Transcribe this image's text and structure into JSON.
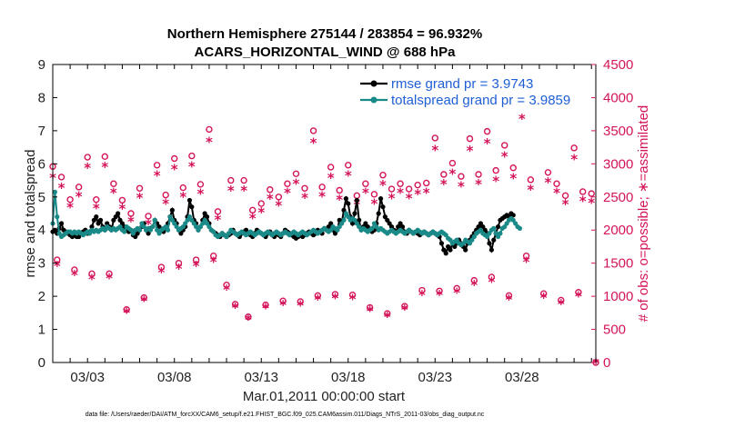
{
  "title_line1": "Northern Hemisphere 275144 / 283854 = 96.932%",
  "title_line2": "ACARS_HORIZONTAL_WIND @ 688 hPa",
  "footnote": "data file: /Users/raeder/DAI/ATM_forcXX/CAM6_setup/f.e21.FHIST_BGC.f09_025.CAM6assim.011/Diags_NTrS_2011-03/obs_diag_output.nc",
  "colors": {
    "rmse": "#000000",
    "spread": "#1a8a88",
    "obs": "#d4145a",
    "legend_text": "#1f5fd6"
  },
  "chart_data": {
    "type": "line",
    "xlabel": "Mar.01,2011 00:00:00 start",
    "ylabel": "rmse and totalspread",
    "y2label": "# of obs: o=possible; ∗=assimilated",
    "x_ticks": [
      "03/03",
      "03/08",
      "03/13",
      "03/18",
      "03/23",
      "03/28"
    ],
    "y_ticks": [
      "0",
      "1",
      "2",
      "3",
      "4",
      "5",
      "6",
      "7",
      "8",
      "9"
    ],
    "y2_ticks": [
      "0",
      "500",
      "1000",
      "1500",
      "2000",
      "2500",
      "3000",
      "3500",
      "4000",
      "4500"
    ],
    "xlim": [
      1.0,
      32.25
    ],
    "ylim": [
      0,
      9
    ],
    "y2lim": [
      0,
      4500
    ],
    "legend": [
      {
        "label": "rmse grand pr = 3.9743",
        "series": "rmse"
      },
      {
        "label": "totalspread grand pr = 3.9859",
        "series": "spread"
      }
    ],
    "legend_position": "top-right",
    "grid": false,
    "series": [
      {
        "name": "rmse",
        "axis": "left",
        "color": "#000000",
        "x_start": 1.0,
        "dx": 0.125,
        "values": [
          3.95,
          4.0,
          3.9,
          4.05,
          4.2,
          4.0,
          3.95,
          3.9,
          3.85,
          3.8,
          3.85,
          3.8,
          3.8,
          3.9,
          3.95,
          4.0,
          3.9,
          3.95,
          4.1,
          4.3,
          4.4,
          4.2,
          4.3,
          4.1,
          4.0,
          4.2,
          4.1,
          4.0,
          4.3,
          4.4,
          4.5,
          4.3,
          4.2,
          4.1,
          4.0,
          3.95,
          4.0,
          3.85,
          3.8,
          3.9,
          4.0,
          4.1,
          4.2,
          4.0,
          3.9,
          4.05,
          4.1,
          4.3,
          4.2,
          4.1,
          4.0,
          3.95,
          4.05,
          4.2,
          4.4,
          4.6,
          4.3,
          4.2,
          4.0,
          3.9,
          4.0,
          4.1,
          4.4,
          4.9,
          4.7,
          4.3,
          4.2,
          4.0,
          4.1,
          4.3,
          4.5,
          4.4,
          4.2,
          4.0,
          3.95,
          3.9,
          3.85,
          3.8,
          3.9,
          3.85,
          3.8,
          3.85,
          3.9,
          4.0,
          3.9,
          3.85,
          3.8,
          3.9,
          3.95,
          4.0,
          3.9,
          3.85,
          3.8,
          3.9,
          4.0,
          3.95,
          3.9,
          3.85,
          3.8,
          3.9,
          3.95,
          3.85,
          3.8,
          3.9,
          3.85,
          3.8,
          3.9,
          4.0,
          3.95,
          3.9,
          3.85,
          3.8,
          3.75,
          3.8,
          3.85,
          3.8,
          3.85,
          3.9,
          3.95,
          3.9,
          3.85,
          3.9,
          4.0,
          3.95,
          3.9,
          4.05,
          4.0,
          4.1,
          4.2,
          4.0,
          3.9,
          4.0,
          4.3,
          4.2,
          4.6,
          4.95,
          4.8,
          4.4,
          4.2,
          4.5,
          4.9,
          4.3,
          4.0,
          4.1,
          4.2,
          4.1,
          4.0,
          3.95,
          4.0,
          4.2,
          4.5,
          4.95,
          4.7,
          4.4,
          4.3,
          4.2,
          4.1,
          4.0,
          3.95,
          4.1,
          4.2,
          4.1,
          3.95,
          3.9,
          4.0,
          3.95,
          3.9,
          3.95,
          3.9,
          3.85,
          3.9,
          3.95,
          3.9,
          3.85,
          3.9,
          3.95,
          3.9,
          3.85,
          3.8,
          3.6,
          3.4,
          3.3,
          3.5,
          3.4,
          3.6,
          3.5,
          3.6,
          3.7,
          3.6,
          3.5,
          3.4,
          3.6,
          3.7,
          3.8,
          3.9,
          4.0,
          4.1,
          4.2,
          4.1,
          4.0,
          3.9,
          3.6,
          3.4,
          3.7,
          3.9,
          4.1,
          4.3,
          4.35,
          4.4,
          4.45,
          4.4,
          4.5,
          4.45
        ]
      },
      {
        "name": "totalspread",
        "axis": "left",
        "color": "#1a8a88",
        "x_start": 1.0,
        "dx": 0.125,
        "values": [
          4.2,
          5.15,
          4.4,
          3.9,
          3.8,
          3.85,
          3.9,
          3.95,
          3.95,
          3.9,
          3.95,
          3.9,
          3.95,
          3.9,
          3.85,
          3.9,
          3.95,
          3.9,
          4.0,
          3.95,
          4.0,
          3.95,
          4.0,
          4.05,
          4.0,
          4.1,
          4.05,
          4.0,
          4.05,
          4.0,
          4.05,
          4.1,
          4.0,
          3.95,
          4.1,
          4.05,
          4.0,
          3.9,
          4.0,
          4.05,
          4.0,
          4.2,
          4.1,
          4.0,
          4.05,
          4.0,
          4.1,
          4.3,
          4.0,
          3.9,
          4.0,
          4.05,
          4.1,
          4.0,
          4.4,
          4.3,
          4.2,
          4.1,
          4.0,
          4.05,
          4.1,
          4.2,
          4.3,
          4.4,
          4.3,
          4.2,
          4.1,
          4.0,
          4.1,
          4.2,
          4.3,
          4.2,
          4.1,
          4.0,
          3.95,
          3.85,
          3.8,
          3.85,
          3.9,
          3.85,
          3.8,
          3.9,
          4.0,
          3.95,
          3.9,
          3.85,
          3.9,
          3.95,
          3.9,
          3.85,
          3.9,
          3.95,
          3.9,
          3.85,
          3.9,
          3.95,
          3.9,
          3.85,
          3.9,
          3.95,
          3.9,
          3.85,
          3.9,
          3.95,
          3.9,
          3.85,
          3.9,
          3.95,
          3.9,
          3.85,
          3.9,
          3.95,
          3.9,
          3.85,
          3.9,
          3.95,
          3.9,
          3.85,
          3.9,
          3.95,
          4.0,
          3.95,
          3.9,
          3.95,
          4.0,
          4.05,
          4.0,
          3.95,
          4.0,
          4.1,
          4.05,
          4.0,
          4.1,
          4.2,
          4.3,
          4.5,
          4.4,
          4.3,
          4.35,
          4.3,
          4.2,
          4.1,
          4.0,
          4.05,
          4.0,
          3.95,
          4.0,
          4.05,
          4.2,
          4.1,
          4.0,
          4.05,
          4.0,
          3.95,
          3.9,
          3.95,
          4.0,
          3.95,
          3.9,
          3.95,
          4.0,
          3.95,
          3.9,
          3.95,
          4.0,
          3.95,
          3.9,
          3.95,
          4.0,
          3.95,
          3.9,
          3.95,
          3.9,
          3.85,
          3.9,
          3.95,
          3.9,
          3.85,
          3.9,
          3.95,
          3.9,
          3.85,
          3.75,
          3.7,
          3.6,
          3.65,
          3.7,
          3.6,
          3.55,
          3.6,
          3.7,
          3.65,
          3.6,
          3.7,
          3.8,
          3.9,
          3.95,
          4.0,
          3.9,
          3.85,
          3.8,
          3.9,
          4.0,
          4.05,
          3.9,
          3.8,
          3.9,
          4.05,
          4.1,
          4.2,
          4.3,
          4.35,
          4.3,
          4.2,
          4.1,
          4.05
        ]
      },
      {
        "name": "possible",
        "axis": "right",
        "color": "#d4145a",
        "marker": "o",
        "x": [
          1.0,
          1.25,
          1.5,
          2.0,
          2.25,
          2.5,
          3.0,
          3.25,
          3.5,
          4.0,
          4.25,
          4.5,
          5.0,
          5.25,
          5.5,
          6.0,
          6.25,
          6.5,
          7.0,
          7.25,
          7.5,
          8.0,
          8.25,
          8.5,
          9.0,
          9.25,
          9.5,
          10.0,
          10.25,
          10.5,
          11.0,
          11.25,
          11.5,
          12.0,
          12.25,
          12.5,
          13.0,
          13.25,
          13.5,
          14.0,
          14.25,
          14.5,
          15.0,
          15.25,
          15.5,
          16.0,
          16.25,
          16.5,
          17.0,
          17.25,
          17.5,
          18.0,
          18.25,
          18.5,
          19.0,
          19.25,
          19.5,
          20.0,
          20.25,
          20.5,
          21.0,
          21.25,
          21.5,
          22.0,
          22.25,
          22.5,
          23.0,
          23.25,
          23.5,
          24.0,
          24.25,
          24.5,
          25.0,
          25.25,
          25.5,
          26.0,
          26.25,
          26.5,
          27.0,
          27.25,
          27.5,
          28.0,
          28.25,
          28.5,
          29.0,
          29.25,
          29.5,
          30.0,
          30.25,
          30.5,
          31.0,
          31.25,
          31.5,
          32.0,
          32.25
        ],
        "values": [
          2960,
          1550,
          2800,
          2460,
          1400,
          2650,
          3100,
          1340,
          2460,
          3110,
          1340,
          2700,
          2450,
          800,
          2250,
          2630,
          980,
          2210,
          2980,
          1440,
          2530,
          3080,
          1500,
          2640,
          3120,
          1550,
          2690,
          3520,
          1610,
          2280,
          1170,
          2750,
          880,
          2750,
          690,
          2300,
          2400,
          870,
          2610,
          2500,
          930,
          2700,
          2850,
          920,
          2630,
          3500,
          1010,
          2650,
          2950,
          1030,
          2600,
          2980,
          1020,
          2520,
          2700,
          830,
          2540,
          2830,
          740,
          2620,
          2700,
          850,
          2620,
          2680,
          1090,
          2710,
          3390,
          1080,
          2840,
          3010,
          1120,
          2810,
          3380,
          1240,
          2840,
          3490,
          1290,
          2900,
          3280,
          1010,
          2940,
          3880,
          1610,
          2760,
          4040,
          1040,
          2870,
          2700,
          940,
          2520,
          3240,
          1060,
          2580,
          2550,
          0
        ]
      },
      {
        "name": "assimilated",
        "axis": "right",
        "color": "#d4145a",
        "marker": "*",
        "x": [
          1.0,
          1.25,
          1.5,
          2.0,
          2.25,
          2.5,
          3.0,
          3.25,
          3.5,
          4.0,
          4.25,
          4.5,
          5.0,
          5.25,
          5.5,
          6.0,
          6.25,
          6.5,
          7.0,
          7.25,
          7.5,
          8.0,
          8.25,
          8.5,
          9.0,
          9.25,
          9.5,
          10.0,
          10.25,
          10.5,
          11.0,
          11.25,
          11.5,
          12.0,
          12.25,
          12.5,
          13.0,
          13.25,
          13.5,
          14.0,
          14.25,
          14.5,
          15.0,
          15.25,
          15.5,
          16.0,
          16.25,
          16.5,
          17.0,
          17.25,
          17.5,
          18.0,
          18.25,
          18.5,
          19.0,
          19.25,
          19.5,
          20.0,
          20.25,
          20.5,
          21.0,
          21.25,
          21.5,
          22.0,
          22.25,
          22.5,
          23.0,
          23.25,
          23.5,
          24.0,
          24.25,
          24.5,
          25.0,
          25.25,
          25.5,
          26.0,
          26.25,
          26.5,
          27.0,
          27.25,
          27.5,
          28.0,
          28.25,
          28.5,
          29.0,
          29.25,
          29.5,
          30.0,
          30.25,
          30.5,
          31.0,
          31.25,
          31.5,
          32.0,
          32.25
        ],
        "values": [
          2800,
          1470,
          2650,
          2350,
          1330,
          2520,
          2950,
          1270,
          2340,
          2960,
          1280,
          2570,
          2330,
          760,
          2140,
          2500,
          940,
          2100,
          2830,
          1370,
          2410,
          2930,
          1430,
          2510,
          2970,
          1470,
          2560,
          3340,
          1530,
          2170,
          1110,
          2610,
          840,
          2610,
          660,
          2190,
          2280,
          830,
          2480,
          2380,
          880,
          2570,
          2710,
          870,
          2500,
          3330,
          960,
          2520,
          2800,
          980,
          2470,
          2830,
          970,
          2400,
          2570,
          790,
          2410,
          2690,
          700,
          2490,
          2570,
          810,
          2490,
          2550,
          1030,
          2570,
          3220,
          1030,
          2700,
          2860,
          1060,
          2670,
          3210,
          1180,
          2700,
          3320,
          1230,
          2750,
          3120,
          960,
          2790,
          3690,
          1530,
          2620,
          3840,
          990,
          2730,
          2570,
          890,
          2400,
          3080,
          1010,
          2450,
          2420,
          0
        ]
      }
    ]
  }
}
